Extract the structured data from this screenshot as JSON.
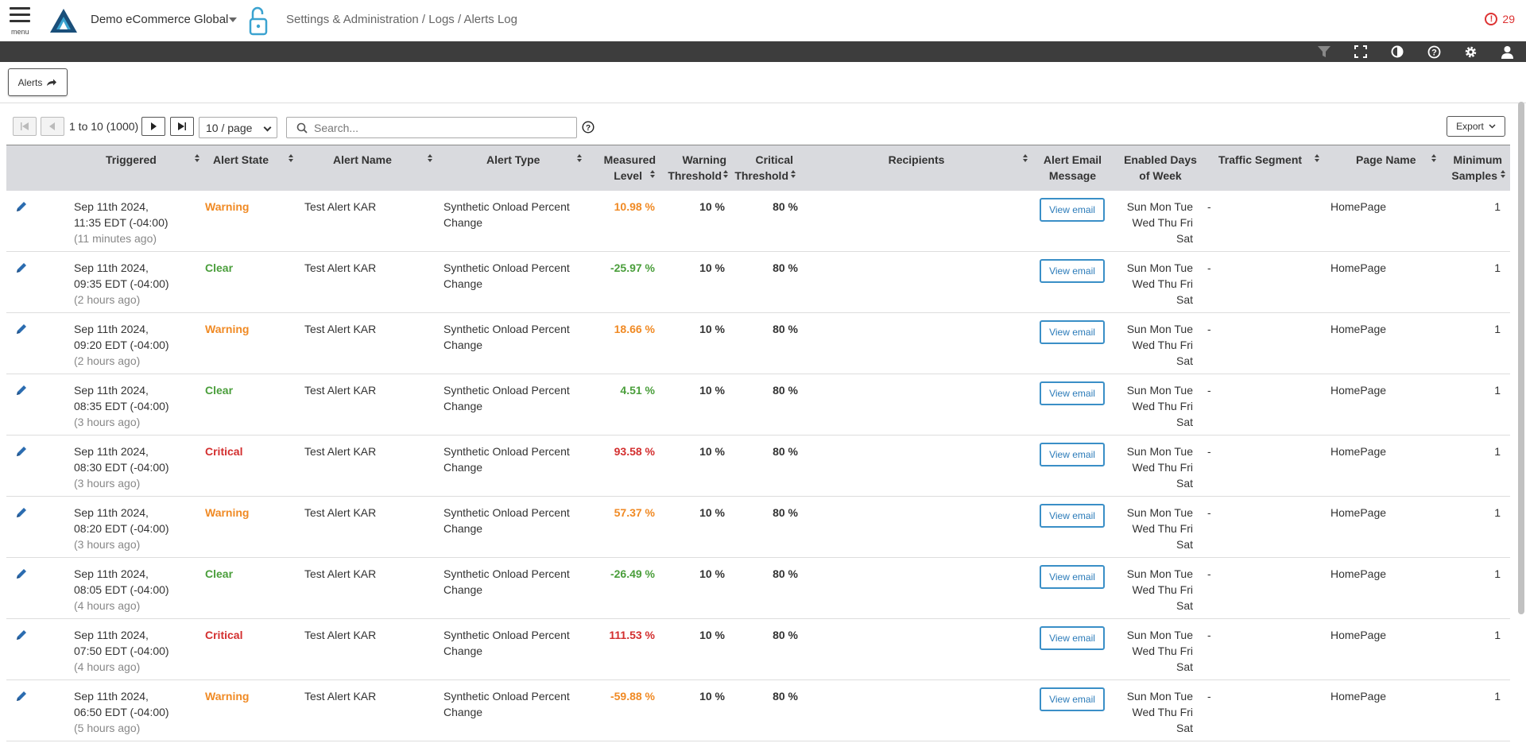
{
  "header": {
    "menu_label": "menu",
    "app_name": "Demo eCommerce Global",
    "breadcrumb": "Settings & Administration / Logs / Alerts Log",
    "alert_count": "29",
    "accent_color": "#1a6b8f",
    "alert_color": "#d33333"
  },
  "toolbar": {
    "icons": [
      "filter-icon",
      "fullscreen-icon",
      "contrast-icon",
      "help-icon",
      "settings-icon",
      "user-icon"
    ]
  },
  "tab": {
    "label": "Alerts"
  },
  "pager": {
    "range_text": "1 to 10 (1000)",
    "per_page": "10 / page",
    "search_placeholder": "Search...",
    "export_label": "Export"
  },
  "table": {
    "columns": {
      "triggered": "Triggered",
      "alert_state": "Alert State",
      "alert_name": "Alert Name",
      "alert_type": "Alert Type",
      "measured_1": "Measured",
      "measured_2": "Level",
      "warning_1": "Warning",
      "warning_2": "Threshold",
      "critical_1": "Critical",
      "critical_2": "Threshold",
      "recipients": "Recipients",
      "email_1": "Alert Email",
      "email_2": "Message",
      "days_1": "Enabled Days",
      "days_2": "of Week",
      "segment": "Traffic Segment",
      "page": "Page Name",
      "min_1": "Minimum",
      "min_2": "Samples"
    },
    "view_email_label": "View email",
    "rows": [
      {
        "date": "Sep 11th 2024,",
        "time": "11:35 EDT (-04:00)",
        "ago": "(11 minutes ago)",
        "state": "Warning",
        "name": "Test Alert KAR",
        "type_1": "Synthetic Onload Percent",
        "type_2": "Change",
        "measured": "10.98 %",
        "warning": "10 %",
        "critical": "80 %",
        "recipients": "",
        "days_1": "Sun Mon Tue",
        "days_2": "Wed Thu Fri",
        "days_3": "Sat",
        "segment": "-",
        "page": "HomePage",
        "min": "1"
      },
      {
        "date": "Sep 11th 2024,",
        "time": "09:35 EDT (-04:00)",
        "ago": "(2 hours ago)",
        "state": "Clear",
        "name": "Test Alert KAR",
        "type_1": "Synthetic Onload Percent",
        "type_2": "Change",
        "measured": "-25.97 %",
        "warning": "10 %",
        "critical": "80 %",
        "recipients": "",
        "days_1": "Sun Mon Tue",
        "days_2": "Wed Thu Fri",
        "days_3": "Sat",
        "segment": "-",
        "page": "HomePage",
        "min": "1"
      },
      {
        "date": "Sep 11th 2024,",
        "time": "09:20 EDT (-04:00)",
        "ago": "(2 hours ago)",
        "state": "Warning",
        "name": "Test Alert KAR",
        "type_1": "Synthetic Onload Percent",
        "type_2": "Change",
        "measured": "18.66 %",
        "warning": "10 %",
        "critical": "80 %",
        "recipients": "",
        "days_1": "Sun Mon Tue",
        "days_2": "Wed Thu Fri",
        "days_3": "Sat",
        "segment": "-",
        "page": "HomePage",
        "min": "1"
      },
      {
        "date": "Sep 11th 2024,",
        "time": "08:35 EDT (-04:00)",
        "ago": "(3 hours ago)",
        "state": "Clear",
        "name": "Test Alert KAR",
        "type_1": "Synthetic Onload Percent",
        "type_2": "Change",
        "measured": "4.51 %",
        "warning": "10 %",
        "critical": "80 %",
        "recipients": "",
        "days_1": "Sun Mon Tue",
        "days_2": "Wed Thu Fri",
        "days_3": "Sat",
        "segment": "-",
        "page": "HomePage",
        "min": "1"
      },
      {
        "date": "Sep 11th 2024,",
        "time": "08:30 EDT (-04:00)",
        "ago": "(3 hours ago)",
        "state": "Critical",
        "name": "Test Alert KAR",
        "type_1": "Synthetic Onload Percent",
        "type_2": "Change",
        "measured": "93.58 %",
        "warning": "10 %",
        "critical": "80 %",
        "recipients": "",
        "days_1": "Sun Mon Tue",
        "days_2": "Wed Thu Fri",
        "days_3": "Sat",
        "segment": "-",
        "page": "HomePage",
        "min": "1"
      },
      {
        "date": "Sep 11th 2024,",
        "time": "08:20 EDT (-04:00)",
        "ago": "(3 hours ago)",
        "state": "Warning",
        "name": "Test Alert KAR",
        "type_1": "Synthetic Onload Percent",
        "type_2": "Change",
        "measured": "57.37 %",
        "warning": "10 %",
        "critical": "80 %",
        "recipients": "",
        "days_1": "Sun Mon Tue",
        "days_2": "Wed Thu Fri",
        "days_3": "Sat",
        "segment": "-",
        "page": "HomePage",
        "min": "1"
      },
      {
        "date": "Sep 11th 2024,",
        "time": "08:05 EDT (-04:00)",
        "ago": "(4 hours ago)",
        "state": "Clear",
        "name": "Test Alert KAR",
        "type_1": "Synthetic Onload Percent",
        "type_2": "Change",
        "measured": "-26.49 %",
        "warning": "10 %",
        "critical": "80 %",
        "recipients": "",
        "days_1": "Sun Mon Tue",
        "days_2": "Wed Thu Fri",
        "days_3": "Sat",
        "segment": "-",
        "page": "HomePage",
        "min": "1"
      },
      {
        "date": "Sep 11th 2024,",
        "time": "07:50 EDT (-04:00)",
        "ago": "(4 hours ago)",
        "state": "Critical",
        "name": "Test Alert KAR",
        "type_1": "Synthetic Onload Percent",
        "type_2": "Change",
        "measured": "111.53 %",
        "warning": "10 %",
        "critical": "80 %",
        "recipients": "",
        "days_1": "Sun Mon Tue",
        "days_2": "Wed Thu Fri",
        "days_3": "Sat",
        "segment": "-",
        "page": "HomePage",
        "min": "1"
      },
      {
        "date": "Sep 11th 2024,",
        "time": "06:50 EDT (-04:00)",
        "ago": "(5 hours ago)",
        "state": "Warning",
        "name": "Test Alert KAR",
        "type_1": "Synthetic Onload Percent",
        "type_2": "Change",
        "measured": "-59.88 %",
        "warning": "10 %",
        "critical": "80 %",
        "recipients": "",
        "days_1": "Sun Mon Tue",
        "days_2": "Wed Thu Fri",
        "days_3": "Sat",
        "segment": "-",
        "page": "HomePage",
        "min": "1"
      }
    ]
  }
}
